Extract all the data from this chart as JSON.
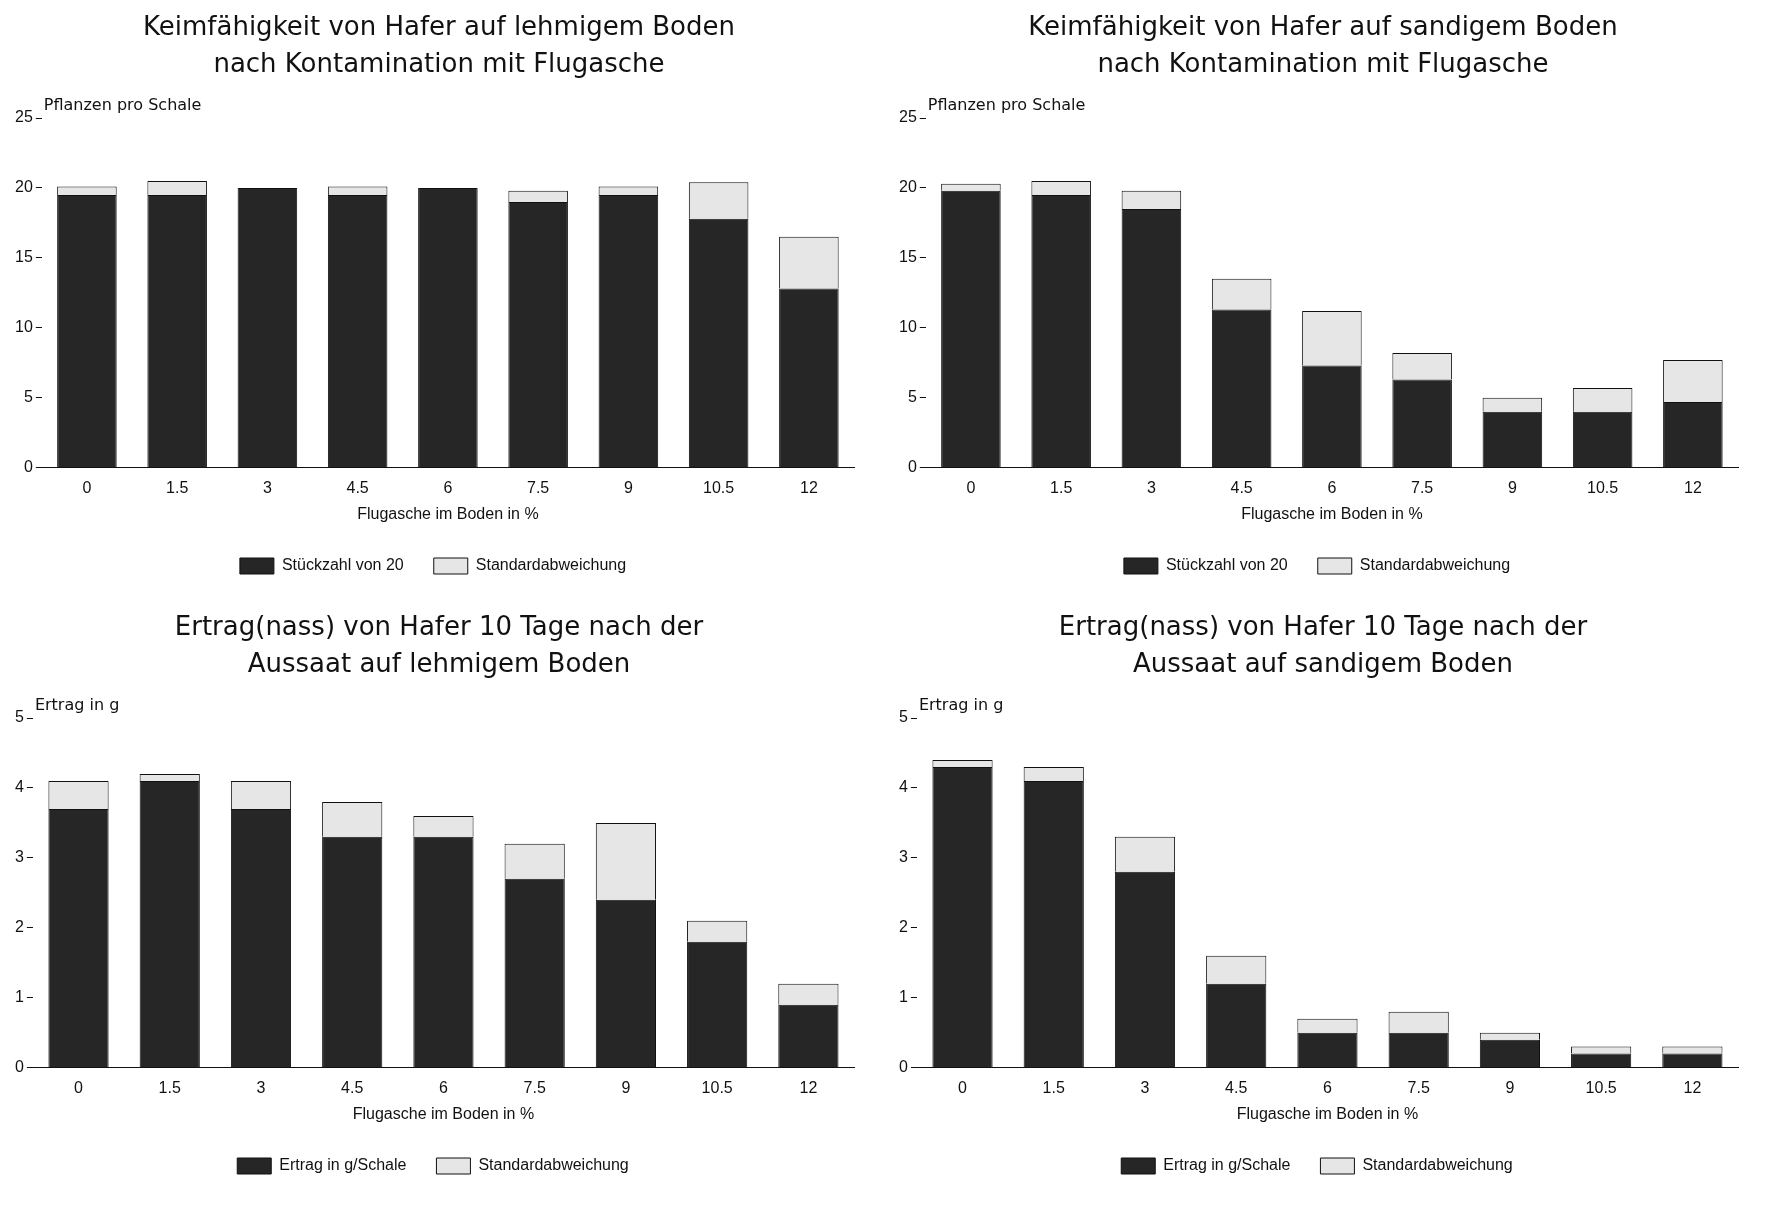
{
  "chart_data": [
    {
      "type": "bar",
      "title": "Keimfähigkeit von Hafer auf lehmigem Boden nach Kontamination mit Flugasche",
      "xlabel": "Flugasche im Boden in %",
      "ylabel": "Pflanzen pro Schale",
      "categories": [
        "0",
        "1.5",
        "3",
        "4.5",
        "6",
        "7.5",
        "9",
        "10.5",
        "12"
      ],
      "stacked": true,
      "ylim": [
        0,
        25
      ],
      "yticks": [
        0,
        5,
        10,
        15,
        20,
        25
      ],
      "grid": false,
      "legend": "bottom",
      "series": [
        {
          "name": "Stückzahl von 20",
          "color": "#262626",
          "values": [
            19.5,
            19.5,
            20,
            19.5,
            20,
            19,
            19.5,
            17.8,
            12.8
          ]
        },
        {
          "name": "Standardabweichung",
          "color": "#e6e6e6",
          "values": [
            0.6,
            1.0,
            0,
            0.6,
            0,
            0.8,
            0.6,
            2.6,
            3.7
          ]
        }
      ]
    },
    {
      "type": "bar",
      "title": "Keimfähigkeit von Hafer auf sandigem Boden nach Kontamination mit Flugasche",
      "xlabel": "Flugasche im Boden in %",
      "ylabel": "Pflanzen pro Schale",
      "categories": [
        "0",
        "1.5",
        "3",
        "4.5",
        "6",
        "7.5",
        "9",
        "10.5",
        "12"
      ],
      "stacked": true,
      "ylim": [
        0,
        25
      ],
      "yticks": [
        0,
        5,
        10,
        15,
        20,
        25
      ],
      "grid": false,
      "legend": "bottom",
      "series": [
        {
          "name": "Stückzahl von 20",
          "color": "#262626",
          "values": [
            19.8,
            19.5,
            18.5,
            11.3,
            7.3,
            6.3,
            4,
            4,
            4.7
          ]
        },
        {
          "name": "Standardabweichung",
          "color": "#e6e6e6",
          "values": [
            0.5,
            1.0,
            1.3,
            2.2,
            3.9,
            1.9,
            1.0,
            1.7,
            3.0
          ]
        }
      ]
    },
    {
      "type": "bar",
      "title": "Ertrag(nass) von Hafer 10 Tage nach der Aussaat auf lehmigem Boden",
      "xlabel": "Flugasche im Boden in %",
      "ylabel": "Ertrag in g",
      "categories": [
        "0",
        "1.5",
        "3",
        "4.5",
        "6",
        "7.5",
        "9",
        "10.5",
        "12"
      ],
      "stacked": true,
      "ylim": [
        0,
        5
      ],
      "yticks": [
        0,
        1,
        2,
        3,
        4,
        5
      ],
      "grid": false,
      "legend": "bottom",
      "series": [
        {
          "name": "Ertrag in g/Schale",
          "color": "#262626",
          "values": [
            3.7,
            4.1,
            3.7,
            3.3,
            3.3,
            2.7,
            2.4,
            1.8,
            0.9
          ]
        },
        {
          "name": "Standardabweichung",
          "color": "#e6e6e6",
          "values": [
            0.4,
            0.1,
            0.4,
            0.5,
            0.3,
            0.5,
            1.1,
            0.3,
            0.3
          ]
        }
      ]
    },
    {
      "type": "bar",
      "title": "Ertrag(nass) von Hafer 10 Tage nach der Aussaat auf sandigem Boden",
      "xlabel": "Flugasche im Boden in %",
      "ylabel": "Ertrag in g",
      "categories": [
        "0",
        "1.5",
        "3",
        "4.5",
        "6",
        "7.5",
        "9",
        "10.5",
        "12"
      ],
      "stacked": true,
      "ylim": [
        0,
        5
      ],
      "yticks": [
        0,
        1,
        2,
        3,
        4,
        5
      ],
      "grid": false,
      "legend": "bottom",
      "series": [
        {
          "name": "Ertrag in g/Schale",
          "color": "#262626",
          "values": [
            4.3,
            4.1,
            2.8,
            1.2,
            0.5,
            0.5,
            0.4,
            0.2,
            0.2
          ]
        },
        {
          "name": "Standardabweichung",
          "color": "#e6e6e6",
          "values": [
            0.1,
            0.2,
            0.5,
            0.4,
            0.2,
            0.3,
            0.1,
            0.1,
            0.1
          ]
        }
      ]
    }
  ]
}
